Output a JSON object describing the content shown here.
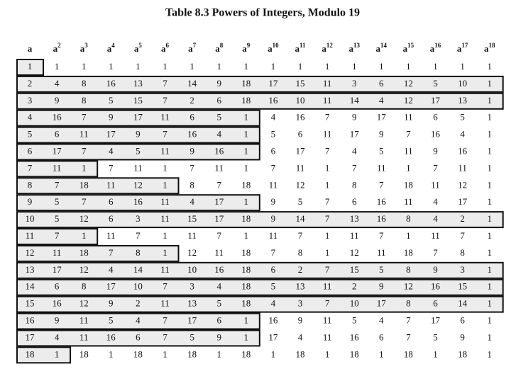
{
  "title": "Table 8.3  Powers of Integers, Modulo 19",
  "table": {
    "columns": [
      {
        "base": "a"
      },
      {
        "base": "a",
        "sup": "2"
      },
      {
        "base": "a",
        "sup": "3"
      },
      {
        "base": "a",
        "sup": "4"
      },
      {
        "base": "a",
        "sup": "5"
      },
      {
        "base": "a",
        "sup": "6"
      },
      {
        "base": "a",
        "sup": "7"
      },
      {
        "base": "a",
        "sup": "8"
      },
      {
        "base": "a",
        "sup": "9"
      },
      {
        "base": "a",
        "sup": "10"
      },
      {
        "base": "a",
        "sup": "11"
      },
      {
        "base": "a",
        "sup": "12"
      },
      {
        "base": "a",
        "sup": "13"
      },
      {
        "base": "a",
        "sup": "14"
      },
      {
        "base": "a",
        "sup": "15"
      },
      {
        "base": "a",
        "sup": "16"
      },
      {
        "base": "a",
        "sup": "17"
      },
      {
        "base": "a",
        "sup": "18"
      }
    ],
    "rows": [
      [
        1,
        1,
        1,
        1,
        1,
        1,
        1,
        1,
        1,
        1,
        1,
        1,
        1,
        1,
        1,
        1,
        1,
        1
      ],
      [
        2,
        4,
        8,
        16,
        13,
        7,
        14,
        9,
        18,
        17,
        15,
        11,
        3,
        6,
        12,
        5,
        10,
        1
      ],
      [
        3,
        9,
        8,
        5,
        15,
        7,
        2,
        6,
        18,
        16,
        10,
        11,
        14,
        4,
        12,
        17,
        13,
        1
      ],
      [
        4,
        16,
        7,
        9,
        17,
        11,
        6,
        5,
        1,
        4,
        16,
        7,
        9,
        17,
        11,
        6,
        5,
        1
      ],
      [
        5,
        6,
        11,
        17,
        9,
        7,
        16,
        4,
        1,
        5,
        6,
        11,
        17,
        9,
        7,
        16,
        4,
        1
      ],
      [
        6,
        17,
        7,
        4,
        5,
        11,
        9,
        16,
        1,
        6,
        17,
        7,
        4,
        5,
        11,
        9,
        16,
        1
      ],
      [
        7,
        11,
        1,
        7,
        11,
        1,
        7,
        11,
        1,
        7,
        11,
        1,
        7,
        11,
        1,
        7,
        11,
        1
      ],
      [
        8,
        7,
        18,
        11,
        12,
        1,
        8,
        7,
        18,
        11,
        12,
        1,
        8,
        7,
        18,
        11,
        12,
        1
      ],
      [
        9,
        5,
        7,
        6,
        16,
        11,
        4,
        17,
        1,
        9,
        5,
        7,
        6,
        16,
        11,
        4,
        17,
        1
      ],
      [
        10,
        5,
        12,
        6,
        3,
        11,
        15,
        17,
        18,
        9,
        14,
        7,
        13,
        16,
        8,
        4,
        2,
        1
      ],
      [
        11,
        7,
        1,
        11,
        7,
        1,
        11,
        7,
        1,
        11,
        7,
        1,
        11,
        7,
        1,
        11,
        7,
        1
      ],
      [
        12,
        11,
        18,
        7,
        8,
        1,
        12,
        11,
        18,
        7,
        8,
        1,
        12,
        11,
        18,
        7,
        8,
        1
      ],
      [
        13,
        17,
        12,
        4,
        14,
        11,
        10,
        16,
        18,
        6,
        2,
        7,
        15,
        5,
        8,
        9,
        3,
        1
      ],
      [
        14,
        6,
        8,
        17,
        10,
        7,
        3,
        4,
        18,
        5,
        13,
        11,
        2,
        9,
        12,
        16,
        15,
        1
      ],
      [
        15,
        16,
        12,
        9,
        2,
        11,
        13,
        5,
        18,
        4,
        3,
        7,
        10,
        17,
        8,
        6,
        14,
        1
      ],
      [
        16,
        9,
        11,
        5,
        4,
        7,
        17,
        6,
        1,
        16,
        9,
        11,
        5,
        4,
        7,
        17,
        6,
        1
      ],
      [
        17,
        4,
        11,
        16,
        6,
        7,
        5,
        9,
        1,
        17,
        4,
        11,
        16,
        6,
        7,
        5,
        9,
        1
      ],
      [
        18,
        1,
        18,
        1,
        18,
        1,
        18,
        1,
        18,
        1,
        18,
        1,
        18,
        1,
        18,
        1,
        18,
        1
      ]
    ]
  }
}
